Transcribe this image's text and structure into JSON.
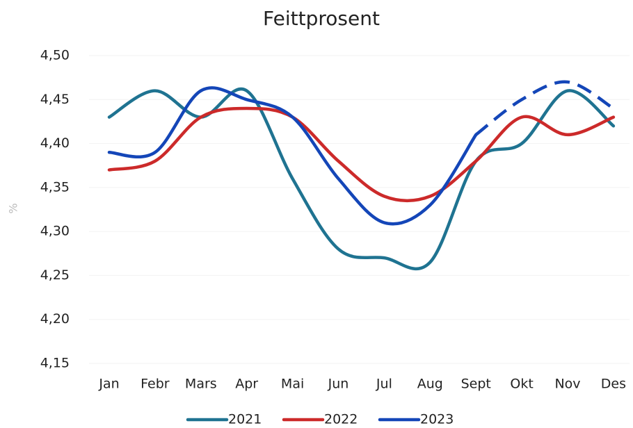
{
  "chart_data": {
    "type": "line",
    "title": "Feittprosent",
    "y_label": "%",
    "categories": [
      "Jan",
      "Febr",
      "Mars",
      "Apr",
      "Mai",
      "Jun",
      "Jul",
      "Aug",
      "Sept",
      "Okt",
      "Nov",
      "Des"
    ],
    "series": [
      {
        "name": "2021",
        "color": "#1f7391",
        "values": [
          4.43,
          4.46,
          4.43,
          4.46,
          4.36,
          4.28,
          4.27,
          4.265,
          4.38,
          4.4,
          4.46,
          4.42
        ]
      },
      {
        "name": "2022",
        "color": "#cc2a2a",
        "values": [
          4.37,
          4.38,
          4.43,
          4.44,
          4.43,
          4.38,
          4.34,
          4.34,
          4.38,
          4.43,
          4.41,
          4.43
        ]
      },
      {
        "name": "2023",
        "color": "#1446b8",
        "values": [
          4.39,
          4.39,
          4.46,
          4.45,
          4.43,
          4.36,
          4.31,
          4.33,
          4.41,
          4.45,
          4.47,
          4.44
        ],
        "dashed_from": 8
      }
    ],
    "ylim": [
      4.15,
      4.5
    ],
    "yticks": [
      {
        "value": 4.15,
        "label": "4,15"
      },
      {
        "value": 4.2,
        "label": "4,20"
      },
      {
        "value": 4.25,
        "label": "4,25"
      },
      {
        "value": 4.3,
        "label": "4,30"
      },
      {
        "value": 4.35,
        "label": "4,35"
      },
      {
        "value": 4.4,
        "label": "4,40"
      },
      {
        "value": 4.45,
        "label": "4,45"
      },
      {
        "value": 4.5,
        "label": "4,50"
      }
    ],
    "grid": true,
    "legend": "bottom"
  }
}
